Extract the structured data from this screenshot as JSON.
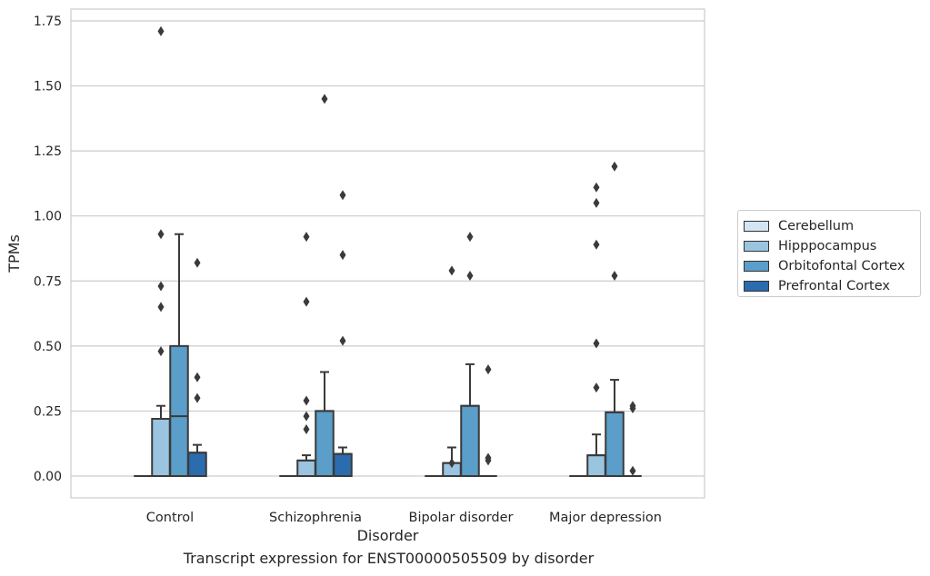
{
  "chart_data": {
    "type": "box",
    "xlabel": "Disorder",
    "ylabel": "TPMs",
    "caption": "Transcript expression for ENST00000505509 by disorder",
    "ylim": [
      -0.085,
      1.8
    ],
    "yticks": [
      "0.00",
      "0.25",
      "0.50",
      "0.75",
      "1.00",
      "1.25",
      "1.50",
      "1.75"
    ],
    "grid": "horizontal",
    "legend_position": "right",
    "categories": [
      "Control",
      "Schizophrenia",
      "Bipolar disorder",
      "Major depression"
    ],
    "series": [
      {
        "name": "Cerebellum",
        "color": "#d3e4f3",
        "boxes": [
          {
            "min": 0,
            "q1": 0,
            "median": 0,
            "q3": 0,
            "max": 0,
            "outliers": []
          },
          {
            "min": 0,
            "q1": 0,
            "median": 0,
            "q3": 0,
            "max": 0,
            "outliers": []
          },
          {
            "min": 0,
            "q1": 0,
            "median": 0,
            "q3": 0,
            "max": 0,
            "outliers": []
          },
          {
            "min": 0,
            "q1": 0,
            "median": 0,
            "q3": 0,
            "max": 0,
            "outliers": []
          }
        ]
      },
      {
        "name": "Hipppocampus",
        "color": "#9ac4e0",
        "boxes": [
          {
            "min": 0,
            "q1": 0,
            "median": 0.22,
            "q3": 0.22,
            "max": 0.27,
            "outliers": [
              1.71,
              0.93,
              0.73,
              0.65,
              0.48
            ]
          },
          {
            "min": 0,
            "q1": 0,
            "median": 0.06,
            "q3": 0.06,
            "max": 0.08,
            "outliers": [
              0.92,
              0.67,
              0.29,
              0.23,
              0.18
            ]
          },
          {
            "min": 0,
            "q1": 0,
            "median": 0.05,
            "q3": 0.05,
            "max": 0.11,
            "outliers": [
              0.79,
              0.05
            ]
          },
          {
            "min": 0,
            "q1": 0,
            "median": 0.08,
            "q3": 0.08,
            "max": 0.16,
            "outliers": [
              1.11,
              1.05,
              0.89,
              0.51,
              0.34
            ]
          }
        ]
      },
      {
        "name": "Orbitofontal Cortex",
        "color": "#5a9ec9",
        "boxes": [
          {
            "min": 0,
            "q1": 0,
            "median": 0.23,
            "q3": 0.5,
            "max": 0.93,
            "outliers": []
          },
          {
            "min": 0,
            "q1": 0,
            "median": 0.25,
            "q3": 0.25,
            "max": 0.4,
            "outliers": [
              1.45
            ]
          },
          {
            "min": 0,
            "q1": 0,
            "median": 0.27,
            "q3": 0.27,
            "max": 0.43,
            "outliers": [
              0.92,
              0.77
            ]
          },
          {
            "min": 0,
            "q1": 0,
            "median": 0.245,
            "q3": 0.245,
            "max": 0.37,
            "outliers": [
              1.19,
              0.77
            ]
          }
        ]
      },
      {
        "name": "Prefrontal Cortex",
        "color": "#2a6cae",
        "boxes": [
          {
            "min": 0,
            "q1": 0,
            "median": 0.09,
            "q3": 0.09,
            "max": 0.12,
            "outliers": [
              0.82,
              0.38,
              0.3
            ]
          },
          {
            "min": 0,
            "q1": 0,
            "median": 0.085,
            "q3": 0.085,
            "max": 0.11,
            "outliers": [
              1.08,
              0.85,
              0.52
            ]
          },
          {
            "min": 0,
            "q1": 0,
            "median": 0,
            "q3": 0,
            "max": 0,
            "outliers": [
              0.41,
              0.07,
              0.06
            ]
          },
          {
            "min": 0,
            "q1": 0,
            "median": 0,
            "q3": 0,
            "max": 0,
            "outliers": [
              0.27,
              0.26,
              0.02
            ]
          }
        ]
      }
    ]
  }
}
